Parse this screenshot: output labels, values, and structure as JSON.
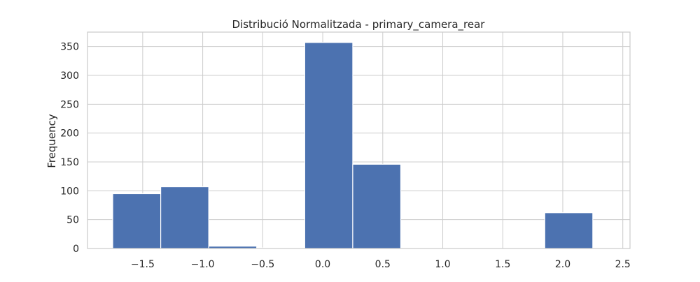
{
  "chart_data": {
    "type": "bar",
    "title": "Distribució Normalitzada - primary_camera_rear",
    "xlabel": "",
    "ylabel": "Frequency",
    "xlim": [
      -1.96,
      2.56
    ],
    "ylim": [
      0,
      375
    ],
    "grid": true,
    "legend": "none",
    "bar_color": "#4c72b0",
    "bins": [
      {
        "x0": -1.75,
        "x1": -1.35,
        "count": 95
      },
      {
        "x0": -1.35,
        "x1": -0.95,
        "count": 107
      },
      {
        "x0": -0.95,
        "x1": -0.55,
        "count": 4
      },
      {
        "x0": -0.55,
        "x1": -0.15,
        "count": 1
      },
      {
        "x0": -0.15,
        "x1": 0.25,
        "count": 357
      },
      {
        "x0": 0.25,
        "x1": 0.65,
        "count": 146
      },
      {
        "x0": 0.65,
        "x1": 1.05,
        "count": 0
      },
      {
        "x0": 1.05,
        "x1": 1.45,
        "count": 0
      },
      {
        "x0": 1.45,
        "x1": 1.85,
        "count": 0
      },
      {
        "x0": 1.85,
        "x1": 2.25,
        "count": 62
      }
    ],
    "xticks": [
      {
        "value": -1.5,
        "label": "−1.5"
      },
      {
        "value": -1.0,
        "label": "−1.0"
      },
      {
        "value": -0.5,
        "label": "−0.5"
      },
      {
        "value": 0.0,
        "label": "0.0"
      },
      {
        "value": 0.5,
        "label": "0.5"
      },
      {
        "value": 1.0,
        "label": "1.0"
      },
      {
        "value": 1.5,
        "label": "1.5"
      },
      {
        "value": 2.0,
        "label": "2.0"
      },
      {
        "value": 2.5,
        "label": "2.5"
      }
    ],
    "yticks": [
      {
        "value": 0,
        "label": "0"
      },
      {
        "value": 50,
        "label": "50"
      },
      {
        "value": 100,
        "label": "100"
      },
      {
        "value": 150,
        "label": "150"
      },
      {
        "value": 200,
        "label": "200"
      },
      {
        "value": 250,
        "label": "250"
      },
      {
        "value": 300,
        "label": "300"
      },
      {
        "value": 350,
        "label": "350"
      }
    ]
  }
}
